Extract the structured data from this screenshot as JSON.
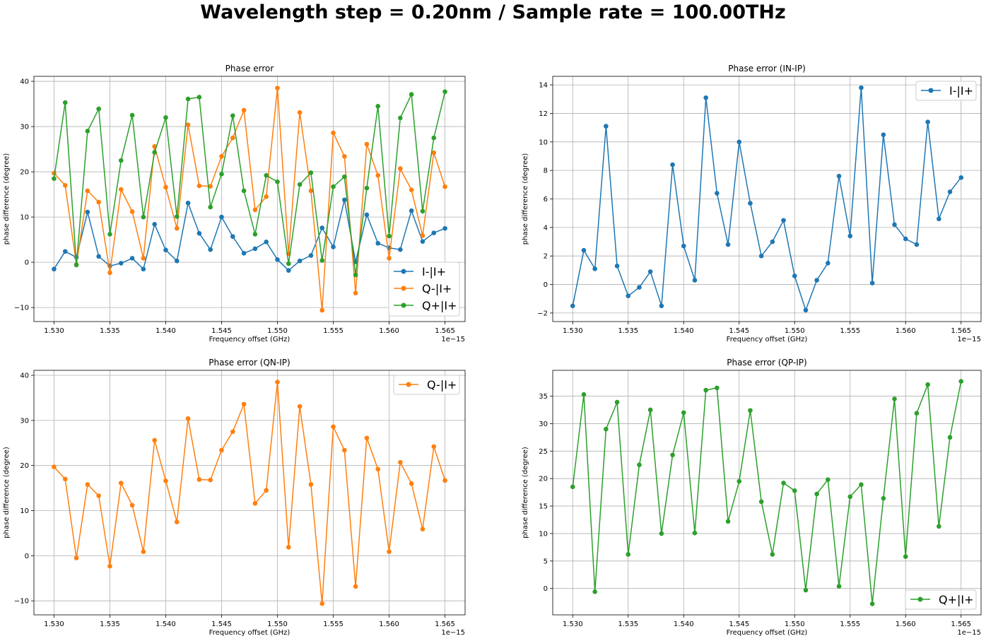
{
  "suptitle": "Wavelength step = 0.20nm / Sample rate = 100.00THz",
  "colors": {
    "blue": "#1f77b4",
    "orange": "#ff7f0e",
    "green": "#2ca02c",
    "grid": "#b0b0b0"
  },
  "chart_data": [
    {
      "type": "line",
      "title": "Phase error",
      "xlabel": "Frequency offset (GHz)",
      "ylabel": "phase difference (degree)",
      "x_offset_label": "1e−15",
      "xlim": [
        1.5282,
        1.5668
      ],
      "ylim": [
        -13.1,
        41.1
      ],
      "xticks": [
        1.53,
        1.535,
        1.54,
        1.545,
        1.55,
        1.555,
        1.56,
        1.565
      ],
      "xtick_labels": [
        "1.530",
        "1.535",
        "1.540",
        "1.545",
        "1.550",
        "1.555",
        "1.560",
        "1.565"
      ],
      "yticks": [
        -10,
        0,
        10,
        20,
        30,
        40
      ],
      "ytick_labels": [
        "−10",
        "0",
        "10",
        "20",
        "30",
        "40"
      ],
      "grid": true,
      "legend_position": "lower-right",
      "x": [
        1.53,
        1.531,
        1.532,
        1.533,
        1.534,
        1.535,
        1.536,
        1.537,
        1.538,
        1.539,
        1.54,
        1.541,
        1.542,
        1.543,
        1.544,
        1.545,
        1.546,
        1.547,
        1.548,
        1.549,
        1.55,
        1.551,
        1.552,
        1.553,
        1.554,
        1.555,
        1.556,
        1.557,
        1.558,
        1.559,
        1.56,
        1.561,
        1.562,
        1.563,
        1.564,
        1.565
      ],
      "series": [
        {
          "name": "I-|I+",
          "color": "#1f77b4",
          "values": [
            -1.5,
            2.4,
            1.1,
            11.1,
            1.3,
            -0.8,
            -0.2,
            0.9,
            -1.5,
            8.4,
            2.7,
            0.3,
            13.1,
            6.4,
            2.8,
            10.0,
            5.7,
            2.0,
            3.0,
            4.5,
            0.6,
            -1.8,
            0.3,
            1.5,
            7.6,
            3.4,
            13.8,
            0.1,
            10.5,
            4.2,
            3.2,
            2.8,
            11.4,
            4.6,
            6.5,
            7.5
          ]
        },
        {
          "name": "Q-|I+",
          "color": "#ff7f0e",
          "values": [
            19.7,
            17.0,
            -0.5,
            15.8,
            13.3,
            -2.3,
            16.1,
            11.2,
            0.9,
            25.6,
            16.6,
            7.5,
            30.4,
            16.9,
            16.8,
            23.4,
            27.5,
            33.6,
            11.6,
            14.5,
            38.5,
            1.9,
            33.1,
            15.8,
            -10.6,
            28.6,
            23.4,
            -6.8,
            26.1,
            19.2,
            0.9,
            20.7,
            16.0,
            5.9,
            24.2,
            16.7
          ]
        },
        {
          "name": "Q+|I+",
          "color": "#2ca02c",
          "values": [
            18.5,
            35.3,
            -0.6,
            29.0,
            33.9,
            6.2,
            22.5,
            32.5,
            10.0,
            24.3,
            32.0,
            10.1,
            36.1,
            36.5,
            12.2,
            19.5,
            32.4,
            15.8,
            6.2,
            19.2,
            17.8,
            -0.3,
            17.2,
            19.8,
            0.4,
            16.7,
            18.9,
            -2.8,
            16.4,
            34.5,
            5.8,
            31.9,
            37.1,
            11.3,
            27.5,
            37.7
          ]
        }
      ]
    },
    {
      "type": "line",
      "title": "Phase error (IN-IP)",
      "xlabel": "Frequency offset (GHz)",
      "ylabel": "phase difference (degree)",
      "x_offset_label": "1e−15",
      "xlim": [
        1.5282,
        1.5668
      ],
      "ylim": [
        -2.6,
        14.6
      ],
      "xticks": [
        1.53,
        1.535,
        1.54,
        1.545,
        1.55,
        1.555,
        1.56,
        1.565
      ],
      "xtick_labels": [
        "1.530",
        "1.535",
        "1.540",
        "1.545",
        "1.550",
        "1.555",
        "1.560",
        "1.565"
      ],
      "yticks": [
        -2,
        0,
        2,
        4,
        6,
        8,
        10,
        12,
        14
      ],
      "ytick_labels": [
        "−2",
        "0",
        "2",
        "4",
        "6",
        "8",
        "10",
        "12",
        "14"
      ],
      "grid": true,
      "legend_position": "top-right",
      "x": [
        1.53,
        1.531,
        1.532,
        1.533,
        1.534,
        1.535,
        1.536,
        1.537,
        1.538,
        1.539,
        1.54,
        1.541,
        1.542,
        1.543,
        1.544,
        1.545,
        1.546,
        1.547,
        1.548,
        1.549,
        1.55,
        1.551,
        1.552,
        1.553,
        1.554,
        1.555,
        1.556,
        1.557,
        1.558,
        1.559,
        1.56,
        1.561,
        1.562,
        1.563,
        1.564,
        1.565
      ],
      "series": [
        {
          "name": "I-|I+",
          "color": "#1f77b4",
          "values": [
            -1.5,
            2.4,
            1.1,
            11.1,
            1.3,
            -0.8,
            -0.2,
            0.9,
            -1.5,
            8.4,
            2.7,
            0.3,
            13.1,
            6.4,
            2.8,
            10.0,
            5.7,
            2.0,
            3.0,
            4.5,
            0.6,
            -1.8,
            0.3,
            1.5,
            7.6,
            3.4,
            13.8,
            0.1,
            10.5,
            4.2,
            3.2,
            2.8,
            11.4,
            4.6,
            6.5,
            7.5
          ]
        }
      ]
    },
    {
      "type": "line",
      "title": "Phase error (QN-IP)",
      "xlabel": "Frequency offset (GHz)",
      "ylabel": "phase difference (degree)",
      "x_offset_label": "1e−15",
      "xlim": [
        1.5282,
        1.5668
      ],
      "ylim": [
        -13.1,
        41.1
      ],
      "xticks": [
        1.53,
        1.535,
        1.54,
        1.545,
        1.55,
        1.555,
        1.56,
        1.565
      ],
      "xtick_labels": [
        "1.530",
        "1.535",
        "1.540",
        "1.545",
        "1.550",
        "1.555",
        "1.560",
        "1.565"
      ],
      "yticks": [
        -10,
        0,
        10,
        20,
        30,
        40
      ],
      "ytick_labels": [
        "−10",
        "0",
        "10",
        "20",
        "30",
        "40"
      ],
      "grid": true,
      "legend_position": "top-right",
      "x": [
        1.53,
        1.531,
        1.532,
        1.533,
        1.534,
        1.535,
        1.536,
        1.537,
        1.538,
        1.539,
        1.54,
        1.541,
        1.542,
        1.543,
        1.544,
        1.545,
        1.546,
        1.547,
        1.548,
        1.549,
        1.55,
        1.551,
        1.552,
        1.553,
        1.554,
        1.555,
        1.556,
        1.557,
        1.558,
        1.559,
        1.56,
        1.561,
        1.562,
        1.563,
        1.564,
        1.565
      ],
      "series": [
        {
          "name": "Q-|I+",
          "color": "#ff7f0e",
          "values": [
            19.7,
            17.0,
            -0.5,
            15.8,
            13.3,
            -2.3,
            16.1,
            11.2,
            0.9,
            25.6,
            16.6,
            7.5,
            30.4,
            16.9,
            16.8,
            23.4,
            27.5,
            33.6,
            11.6,
            14.5,
            38.5,
            1.9,
            33.1,
            15.8,
            -10.6,
            28.6,
            23.4,
            -6.8,
            26.1,
            19.2,
            0.9,
            20.7,
            16.0,
            5.9,
            24.2,
            16.7
          ]
        }
      ]
    },
    {
      "type": "line",
      "title": "Phase error (QP-IP)",
      "xlabel": "Frequency offset (GHz)",
      "ylabel": "phase difference (degree)",
      "x_offset_label": "1e−15",
      "xlim": [
        1.5282,
        1.5668
      ],
      "ylim": [
        -4.8,
        39.7
      ],
      "xticks": [
        1.53,
        1.535,
        1.54,
        1.545,
        1.55,
        1.555,
        1.56,
        1.565
      ],
      "xtick_labels": [
        "1.530",
        "1.535",
        "1.540",
        "1.545",
        "1.550",
        "1.555",
        "1.560",
        "1.565"
      ],
      "yticks": [
        0,
        5,
        10,
        15,
        20,
        25,
        30,
        35
      ],
      "ytick_labels": [
        "0",
        "5",
        "10",
        "15",
        "20",
        "25",
        "30",
        "35"
      ],
      "grid": true,
      "legend_position": "lower-right",
      "x": [
        1.53,
        1.531,
        1.532,
        1.533,
        1.534,
        1.535,
        1.536,
        1.537,
        1.538,
        1.539,
        1.54,
        1.541,
        1.542,
        1.543,
        1.544,
        1.545,
        1.546,
        1.547,
        1.548,
        1.549,
        1.55,
        1.551,
        1.552,
        1.553,
        1.554,
        1.555,
        1.556,
        1.557,
        1.558,
        1.559,
        1.56,
        1.561,
        1.562,
        1.563,
        1.564,
        1.565
      ],
      "series": [
        {
          "name": "Q+|I+",
          "color": "#2ca02c",
          "values": [
            18.5,
            35.3,
            -0.6,
            29.0,
            33.9,
            6.2,
            22.5,
            32.5,
            10.0,
            24.3,
            32.0,
            10.1,
            36.1,
            36.5,
            12.2,
            19.5,
            32.4,
            15.8,
            6.2,
            19.2,
            17.8,
            -0.3,
            17.2,
            19.8,
            0.4,
            16.7,
            18.9,
            -2.8,
            16.4,
            34.5,
            5.8,
            31.9,
            37.1,
            11.3,
            27.5,
            37.7
          ]
        }
      ]
    }
  ]
}
